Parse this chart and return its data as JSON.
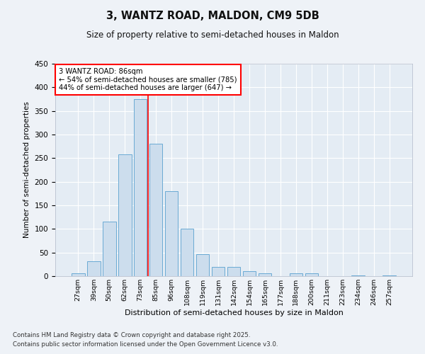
{
  "title": "3, WANTZ ROAD, MALDON, CM9 5DB",
  "subtitle": "Size of property relative to semi-detached houses in Maldon",
  "xlabel": "Distribution of semi-detached houses by size in Maldon",
  "ylabel": "Number of semi-detached properties",
  "categories": [
    "27sqm",
    "39sqm",
    "50sqm",
    "62sqm",
    "73sqm",
    "85sqm",
    "96sqm",
    "108sqm",
    "119sqm",
    "131sqm",
    "142sqm",
    "154sqm",
    "165sqm",
    "177sqm",
    "188sqm",
    "200sqm",
    "211sqm",
    "223sqm",
    "234sqm",
    "246sqm",
    "257sqm"
  ],
  "values": [
    6,
    32,
    115,
    258,
    375,
    281,
    180,
    100,
    47,
    20,
    20,
    10,
    6,
    0,
    6,
    6,
    0,
    0,
    2,
    0,
    2
  ],
  "bar_color": "#ccdded",
  "bar_edge_color": "#6aaad4",
  "red_line_x": 4.5,
  "annotation_text": "3 WANTZ ROAD: 86sqm\n← 54% of semi-detached houses are smaller (785)\n44% of semi-detached houses are larger (647) →",
  "ylim": [
    0,
    450
  ],
  "yticks": [
    0,
    50,
    100,
    150,
    200,
    250,
    300,
    350,
    400,
    450
  ],
  "footnote1": "Contains HM Land Registry data © Crown copyright and database right 2025.",
  "footnote2": "Contains public sector information licensed under the Open Government Licence v3.0.",
  "bg_color": "#eef2f7",
  "plot_bg_color": "#e4ecf4"
}
